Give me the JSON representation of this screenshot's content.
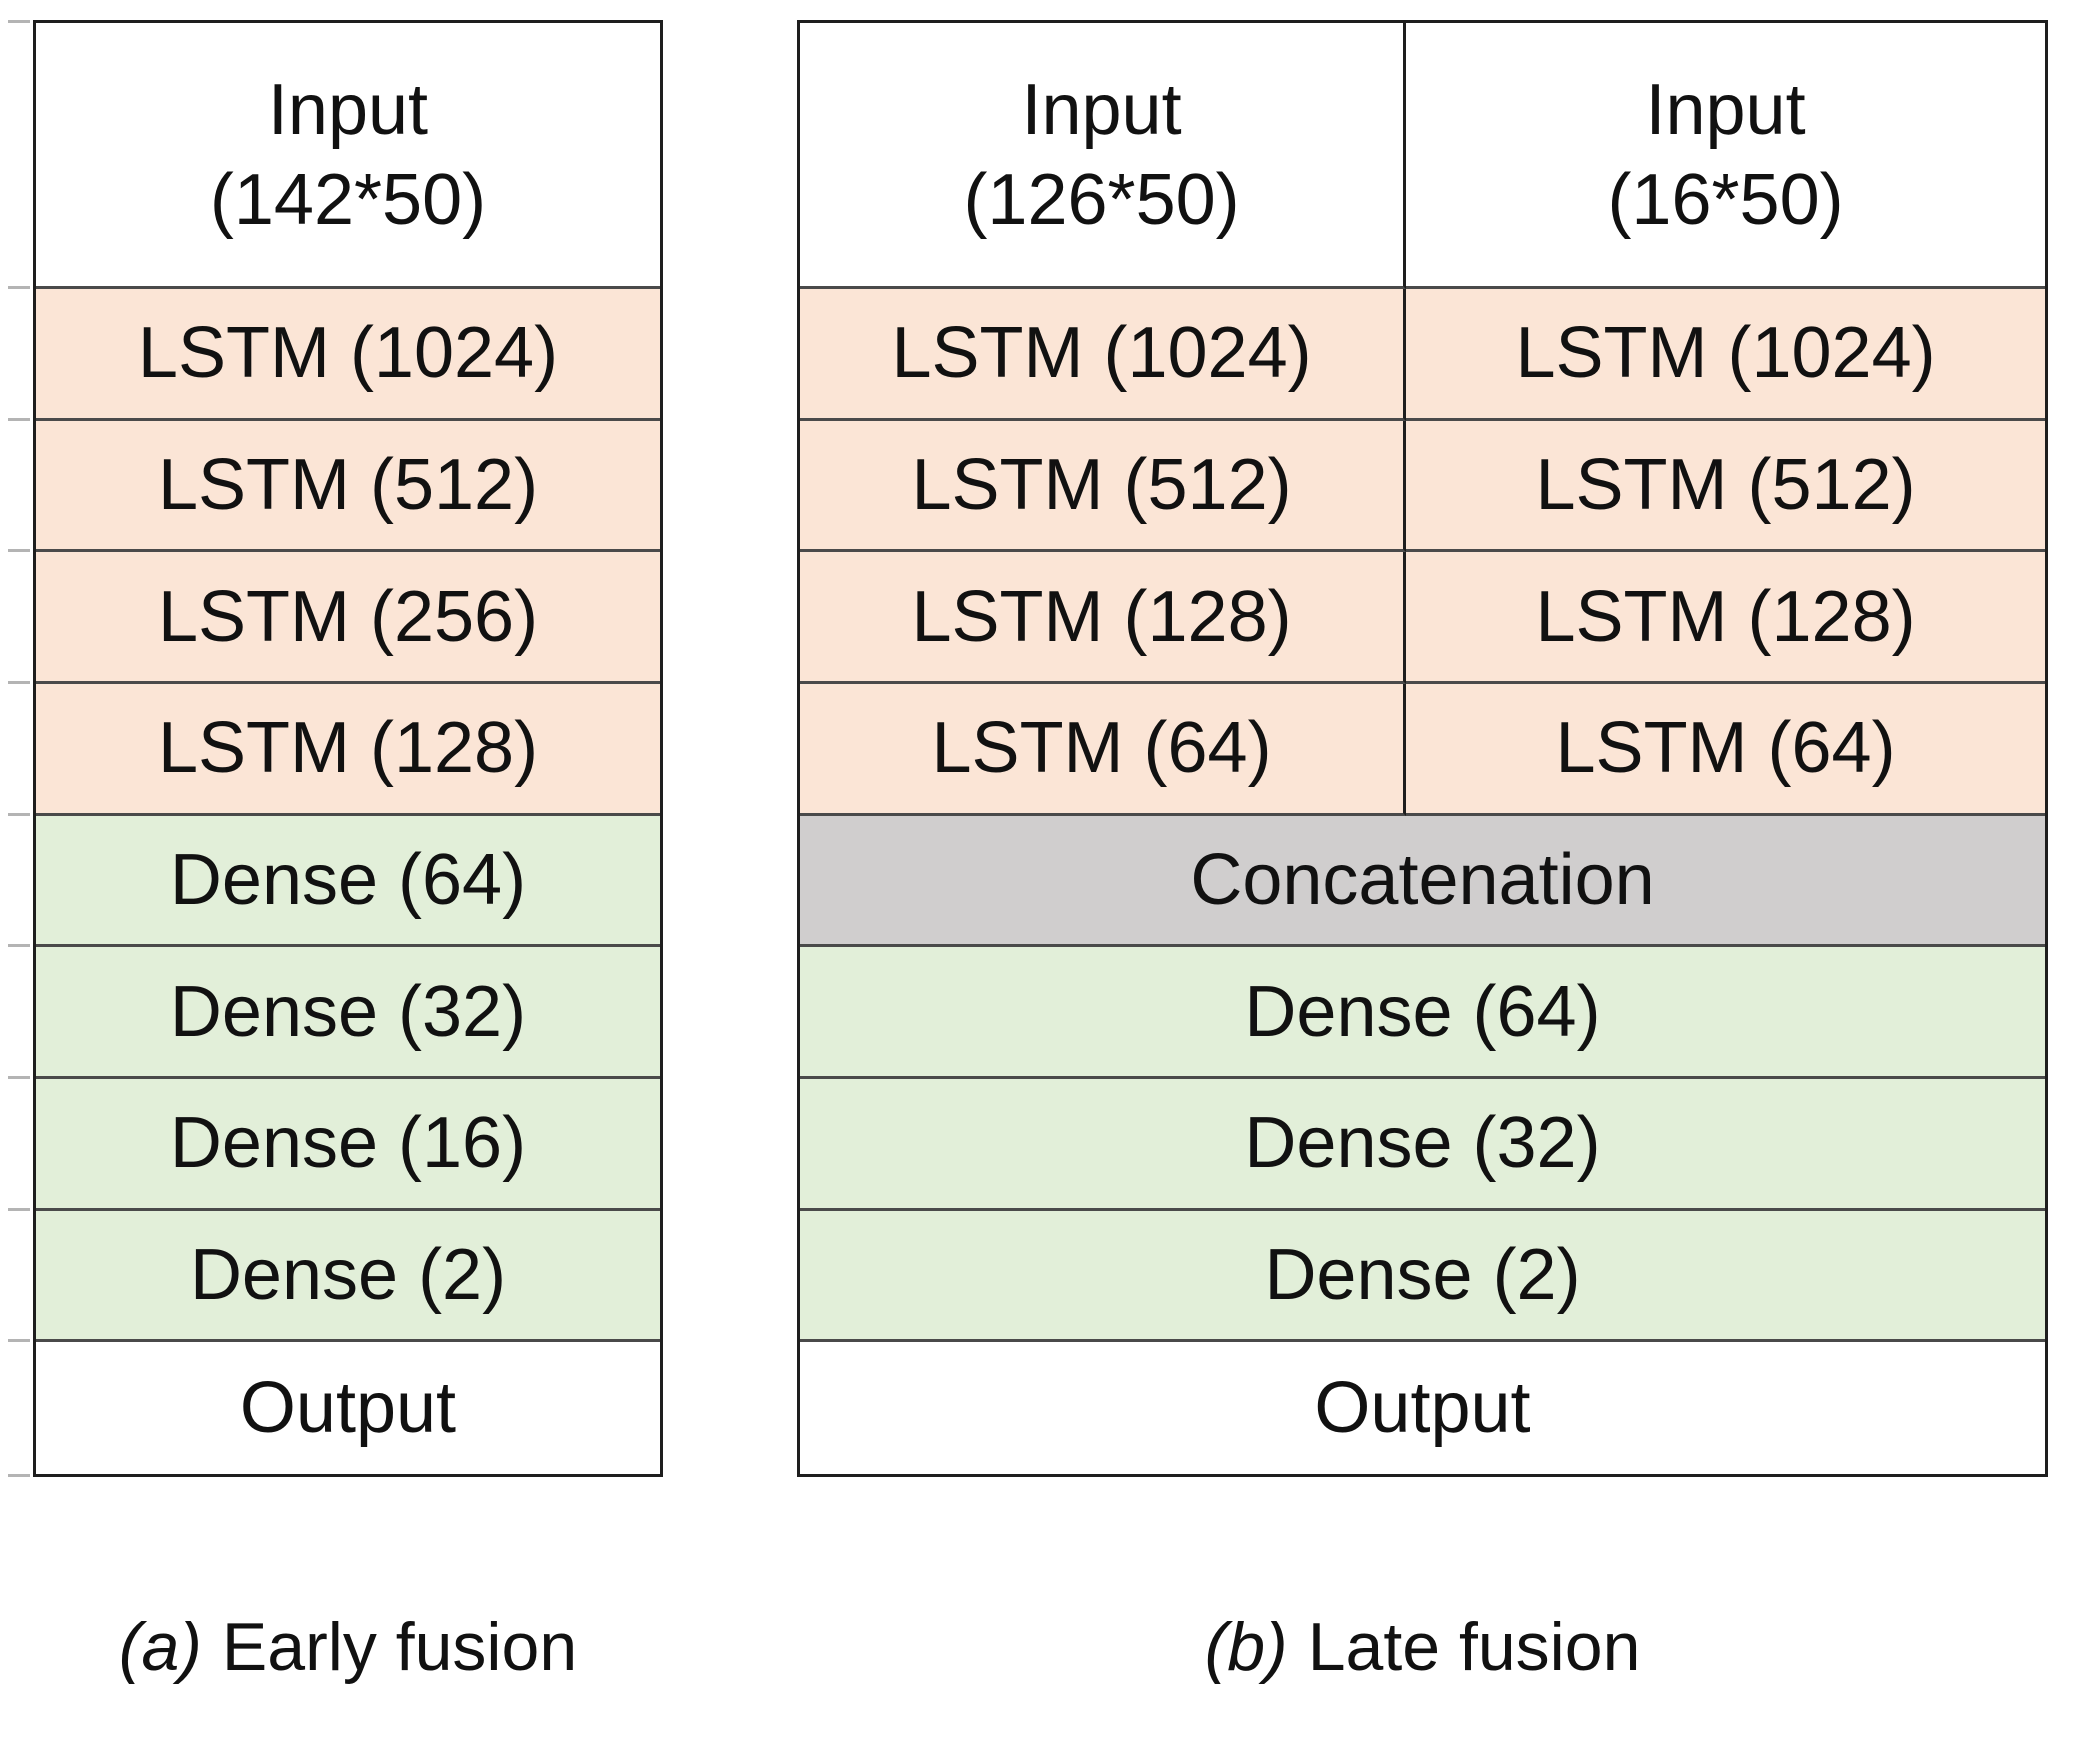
{
  "table_a": {
    "input": {
      "line1": "Input",
      "line2": "(142*50)"
    },
    "layers": [
      "LSTM (1024)",
      "LSTM (512)",
      "LSTM (256)",
      "LSTM (128)",
      "Dense (64)",
      "Dense (32)",
      "Dense (16)",
      "Dense (2)"
    ],
    "output": "Output",
    "caption": {
      "index": "(a)",
      "label": "Early fusion"
    }
  },
  "table_b": {
    "input_left": {
      "line1": "Input",
      "line2": "(126*50)"
    },
    "input_right": {
      "line1": "Input",
      "line2": "(16*50)"
    },
    "branch_left": [
      "LSTM (1024)",
      "LSTM (512)",
      "LSTM (128)",
      "LSTM (64)"
    ],
    "branch_right": [
      "LSTM (1024)",
      "LSTM (512)",
      "LSTM (128)",
      "LSTM (64)"
    ],
    "merged": [
      "Concatenation",
      "Dense (64)",
      "Dense (32)",
      "Dense (2)"
    ],
    "output": "Output",
    "caption": {
      "index": "(b)",
      "label": "Late fusion"
    }
  },
  "colors": {
    "lstm_fill": "#FBE5D6",
    "dense_fill": "#E2EFD9",
    "concat_fill": "#D0CECE",
    "io_fill": "#FFFFFF",
    "border_outer": "#1E1E1E",
    "border_inner": "#4A4A4A",
    "text": "#111111",
    "tick": "#B4B4B4"
  }
}
